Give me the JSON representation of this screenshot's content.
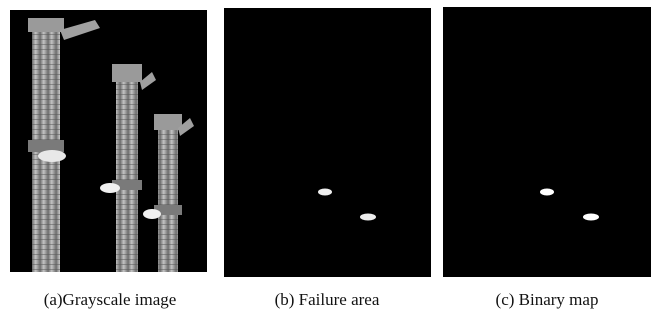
{
  "figure": {
    "panels": [
      {
        "caption": "(a)Grayscale image"
      },
      {
        "caption": "(b) Failure area"
      },
      {
        "caption": "(c) Binary map"
      }
    ]
  }
}
